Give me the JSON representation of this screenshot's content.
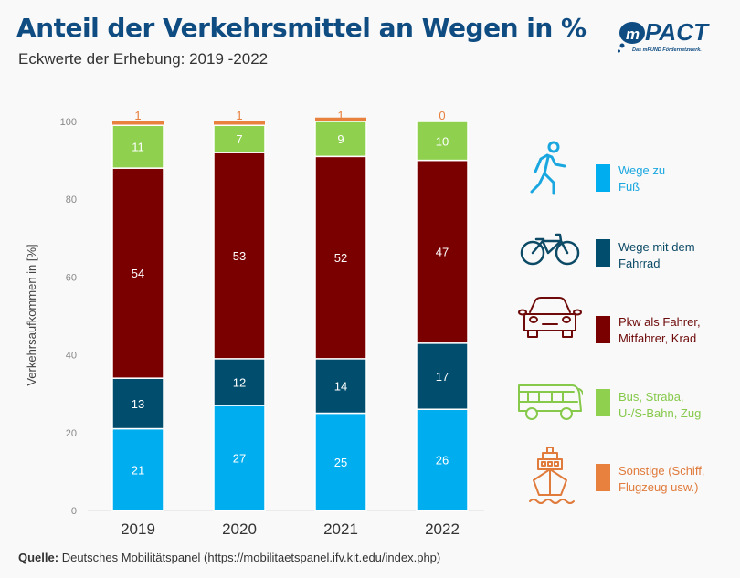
{
  "header": {
    "title": "Anteil der Verkehrsmittel an Wegen in %",
    "subtitle": "Eckwerte der Erhebung: 2019 -2022"
  },
  "logo": {
    "brand": "PACT",
    "prefix": "m",
    "tagline": "Das mFUND Fördernetzwerk."
  },
  "footer": {
    "source_label": "Quelle:",
    "source_text": "Deutsches Mobilitätspanel (https://mobilitaetspanel.ifv.kit.edu/index.php)"
  },
  "chart_data": {
    "type": "bar",
    "stacked": true,
    "title": "Anteil der Verkehrsmittel an Wegen in %",
    "xlabel": "",
    "ylabel": "Verkehrsaufkommen in [%]",
    "ylim": [
      0,
      100
    ],
    "yticks": [
      0,
      20,
      40,
      60,
      80,
      100
    ],
    "grid": false,
    "legend_position": "right",
    "categories": [
      "2019",
      "2020",
      "2021",
      "2022"
    ],
    "series": [
      {
        "name": "Wege zu Fuß",
        "color": "#00aeef",
        "icon": "walking-person-icon",
        "values": [
          21,
          27,
          25,
          26
        ]
      },
      {
        "name": "Wege mit dem Fahrrad",
        "color": "#004d6e",
        "icon": "bicycle-icon",
        "values": [
          13,
          12,
          14,
          17
        ]
      },
      {
        "name": "Pkw als Fahrer, Mitfahrer, Krad",
        "color": "#7a0000",
        "icon": "car-icon",
        "values": [
          54,
          53,
          52,
          47
        ]
      },
      {
        "name": "Bus, Straba, U-/S-Bahn, Zug",
        "color": "#8fd14f",
        "icon": "bus-icon",
        "values": [
          11,
          7,
          9,
          10
        ]
      },
      {
        "name": "Sonstige (Schiff, Flugzeug usw.)",
        "color": "#e8803e",
        "icon": "ship-icon",
        "values": [
          1,
          1,
          1,
          0
        ]
      }
    ]
  },
  "legend": [
    {
      "line1": "Wege zu",
      "line2": "Fuß",
      "color": "#00aeef",
      "text_color": "#1aa7e0"
    },
    {
      "line1": "Wege mit dem",
      "line2": "Fahrrad",
      "color": "#004d6e",
      "text_color": "#0c4a66"
    },
    {
      "line1": "Pkw als Fahrer,",
      "line2": "Mitfahrer, Krad",
      "color": "#7a0000",
      "text_color": "#6e0a0a"
    },
    {
      "line1": "Bus, Straba,",
      "line2": "U-/S-Bahn, Zug",
      "color": "#8fd14f",
      "text_color": "#86c94b"
    },
    {
      "line1": "Sonstige (Schiff,",
      "line2": "Flugzeug usw.)",
      "color": "#e8803e",
      "text_color": "#e07b3c"
    }
  ]
}
